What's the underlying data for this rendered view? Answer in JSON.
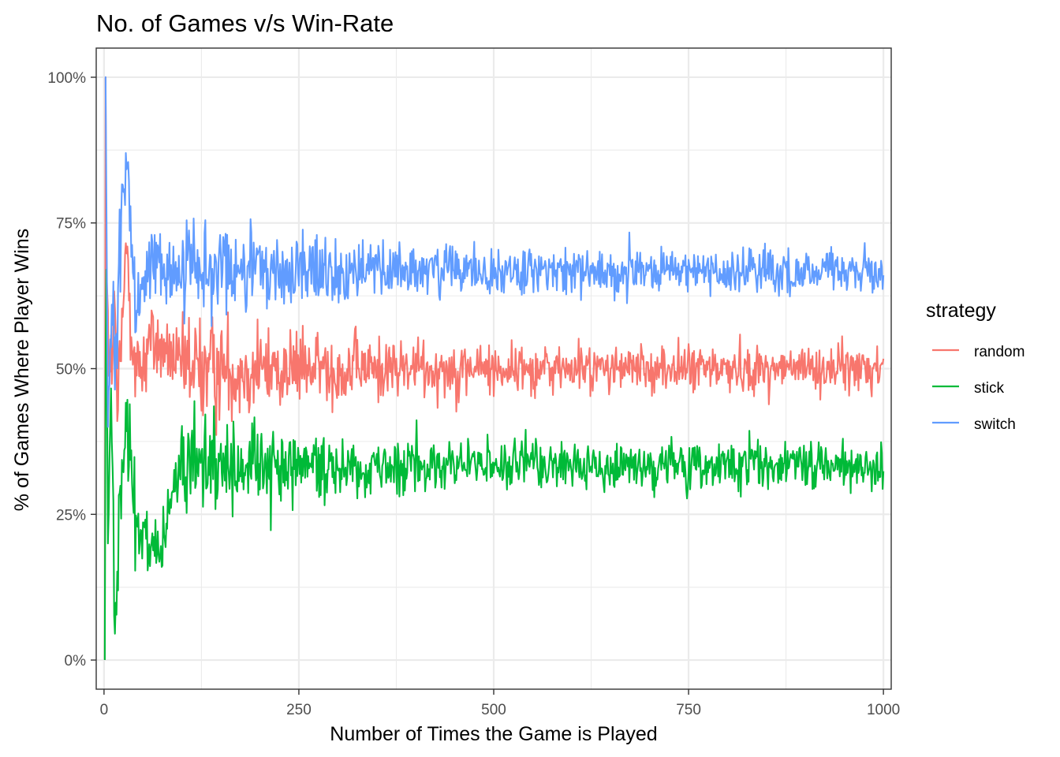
{
  "chart_data": {
    "type": "line",
    "title": "No. of Games v/s Win-Rate",
    "xlabel": "Number of Times the Game is Played",
    "ylabel": "% of Games Where Player Wins",
    "xlim": [
      -10,
      1010
    ],
    "ylim": [
      -0.05,
      1.05
    ],
    "x_ticks": [
      0,
      250,
      500,
      750,
      1000
    ],
    "x_tick_labels": [
      "0",
      "250",
      "500",
      "750",
      "1000"
    ],
    "y_ticks": [
      0,
      0.25,
      0.5,
      0.75,
      1.0
    ],
    "y_tick_labels": [
      "0%",
      "25%",
      "50%",
      "75%",
      "100%"
    ],
    "grid": true,
    "legend": {
      "title": "strategy",
      "position": "right"
    },
    "x_range": [
      1,
      1000
    ],
    "series": [
      {
        "name": "random",
        "color": "#F8766D",
        "mean": 0.5,
        "anchors": [
          [
            1,
            0.0
          ],
          [
            2,
            1.0
          ],
          [
            3,
            0.67
          ],
          [
            5,
            0.6
          ],
          [
            8,
            0.45
          ],
          [
            12,
            0.58
          ],
          [
            15,
            0.55
          ],
          [
            18,
            0.38
          ],
          [
            20,
            0.5
          ],
          [
            25,
            0.6
          ],
          [
            30,
            0.72
          ],
          [
            40,
            0.48
          ],
          [
            60,
            0.55
          ],
          [
            100,
            0.5
          ]
        ]
      },
      {
        "name": "stick",
        "color": "#00BA38",
        "mean": 0.333,
        "anchors": [
          [
            1,
            0.0
          ],
          [
            2,
            0.5
          ],
          [
            3,
            0.67
          ],
          [
            5,
            0.2
          ],
          [
            8,
            0.4
          ],
          [
            12,
            0.33
          ],
          [
            14,
            0.08
          ],
          [
            20,
            0.3
          ],
          [
            30,
            0.4
          ],
          [
            40,
            0.25
          ],
          [
            70,
            0.16
          ],
          [
            100,
            0.35
          ]
        ]
      },
      {
        "name": "switch",
        "color": "#619CFF",
        "mean": 0.667,
        "anchors": [
          [
            1,
            1.0
          ],
          [
            2,
            1.0
          ],
          [
            3,
            0.8
          ],
          [
            5,
            0.4
          ],
          [
            8,
            0.5
          ],
          [
            12,
            0.6
          ],
          [
            15,
            0.45
          ],
          [
            20,
            0.7
          ],
          [
            28,
            0.86
          ],
          [
            40,
            0.6
          ],
          [
            60,
            0.7
          ],
          [
            100,
            0.65
          ]
        ]
      }
    ]
  }
}
